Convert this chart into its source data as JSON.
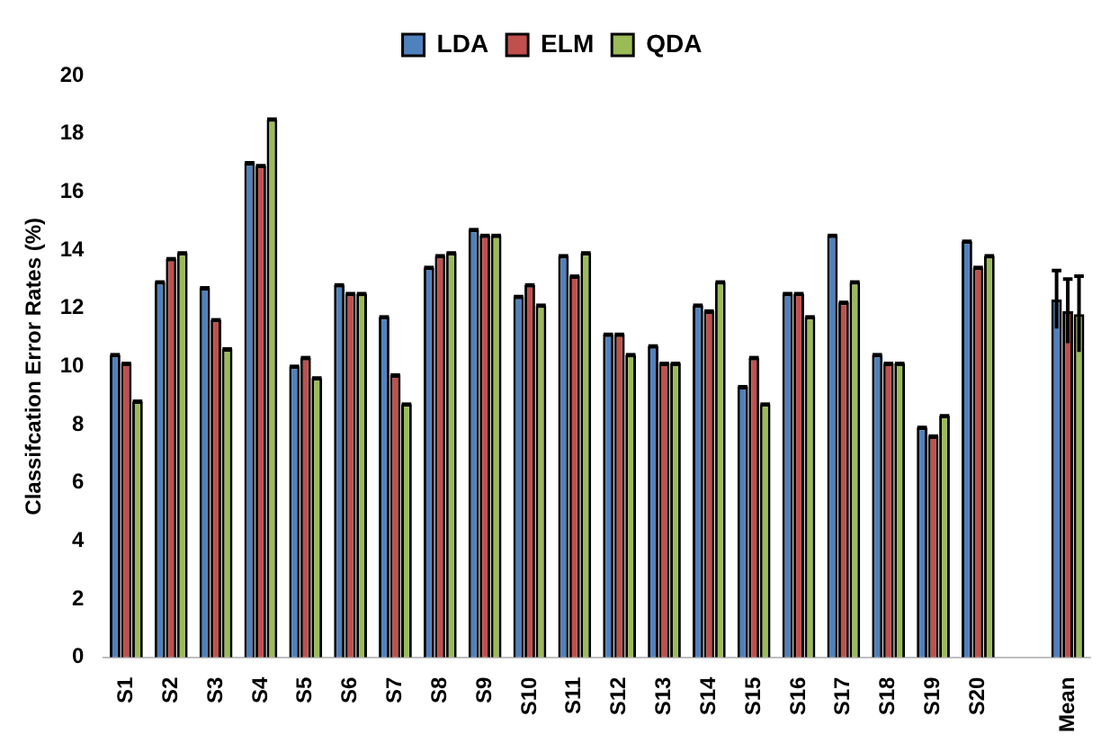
{
  "chart_data": {
    "type": "bar",
    "ylabel": "Classifcation Error Rates (%)",
    "categories": [
      "S1",
      "S2",
      "S3",
      "S4",
      "S5",
      "S6",
      "S7",
      "S8",
      "S9",
      "S10",
      "S11",
      "S12",
      "S13",
      "S14",
      "S15",
      "S16",
      "S17",
      "S18",
      "S19",
      "S20",
      null,
      "Mean"
    ],
    "series": [
      {
        "name": "LDA",
        "color": "#4f81bd",
        "values": [
          10.4,
          12.9,
          12.7,
          17.0,
          10.0,
          12.8,
          11.7,
          13.4,
          14.7,
          12.4,
          13.8,
          11.1,
          10.7,
          12.1,
          9.3,
          12.5,
          14.5,
          10.4,
          7.9,
          14.3,
          null,
          12.3
        ],
        "errors": [
          0,
          0,
          0,
          0,
          0,
          0,
          0,
          0,
          0,
          0,
          0,
          0,
          0,
          0,
          0,
          0,
          0,
          0,
          0,
          0,
          null,
          1.0
        ]
      },
      {
        "name": "ELM",
        "color": "#c0504d",
        "values": [
          10.1,
          13.7,
          11.6,
          16.9,
          10.3,
          12.5,
          9.7,
          13.8,
          14.5,
          12.8,
          13.1,
          11.1,
          10.1,
          11.9,
          10.3,
          12.5,
          12.2,
          10.1,
          7.6,
          13.4,
          null,
          11.9
        ],
        "errors": [
          0,
          0,
          0,
          0,
          0,
          0,
          0,
          0,
          0,
          0,
          0,
          0,
          0,
          0,
          0,
          0,
          0,
          0,
          0,
          0,
          null,
          1.1
        ]
      },
      {
        "name": "QDA",
        "color": "#9bbb59",
        "values": [
          8.8,
          13.9,
          10.6,
          18.5,
          9.6,
          12.5,
          8.7,
          13.9,
          14.5,
          12.1,
          13.9,
          10.4,
          10.1,
          12.9,
          8.7,
          11.7,
          12.9,
          10.1,
          8.3,
          13.8,
          null,
          11.8
        ],
        "errors": [
          0,
          0,
          0,
          0,
          0,
          0,
          0,
          0,
          0,
          0,
          0,
          0,
          0,
          0,
          0,
          0,
          0,
          0,
          0,
          0,
          null,
          1.3
        ]
      }
    ],
    "ylim": [
      0,
      20
    ],
    "yticks": [
      0,
      2,
      4,
      6,
      8,
      10,
      12,
      14,
      16,
      18,
      20
    ],
    "grid": false,
    "legend": "top"
  }
}
